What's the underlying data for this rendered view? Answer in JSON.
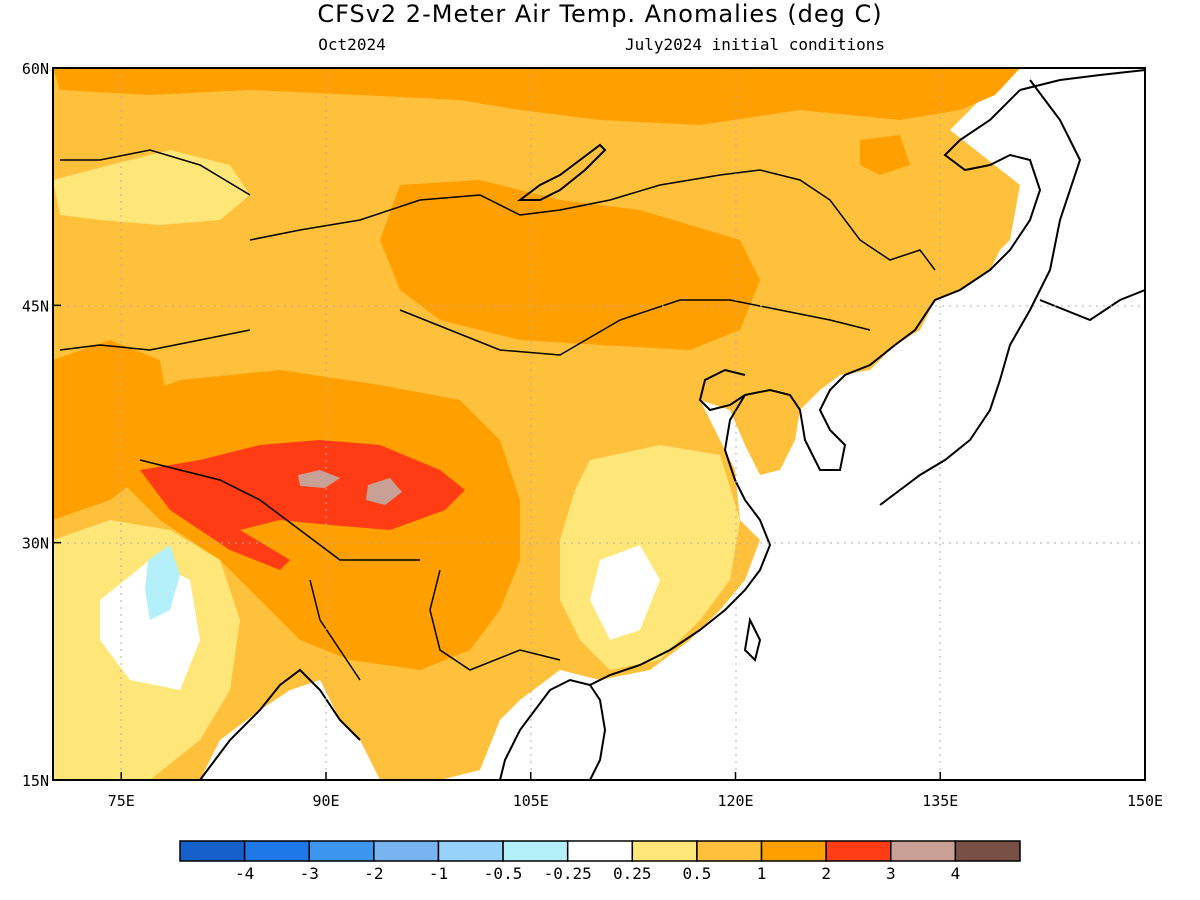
{
  "header": {
    "title": "CFSv2 2-Meter Air Temp. Anomalies (deg C)",
    "left_sub": "Oct2024",
    "right_sub": "July2024 initial conditions"
  },
  "map": {
    "lon_range": [
      70,
      150
    ],
    "lat_range": [
      15,
      60
    ],
    "x_ticks": [
      "75E",
      "90E",
      "105E",
      "120E",
      "135E",
      "150E"
    ],
    "y_ticks": [
      "60N",
      "45N",
      "30N",
      "15N"
    ],
    "grid": "dotted",
    "ocean_color": "#ffffff",
    "coastline_color": "#000000"
  },
  "colorbar": {
    "labels": [
      "-4",
      "-3",
      "-2",
      "-1",
      "-0.5",
      "-0.25",
      "0.25",
      "0.5",
      "1",
      "2",
      "3",
      "4"
    ],
    "colors": [
      "#1660cc",
      "#1e78e6",
      "#3c96f0",
      "#78b4f0",
      "#96d2fa",
      "#b4f0fa",
      "#ffffff",
      "#ffe678",
      "#ffc03c",
      "#ffa000",
      "#ff3c14",
      "#c8a096",
      "#785046"
    ]
  },
  "anomaly_regions": [
    {
      "name": "siberia-north",
      "level": "2"
    },
    {
      "name": "central-asia",
      "level": "1"
    },
    {
      "name": "mongolia-band",
      "level": "2"
    },
    {
      "name": "tibet-core",
      "level": "3"
    },
    {
      "name": "tibet-peak",
      "level": "4"
    },
    {
      "name": "kazakh-cool",
      "level": "0.5"
    },
    {
      "name": "india-cool",
      "level": "-0.5"
    },
    {
      "name": "south-china",
      "level": "0.5"
    }
  ]
}
